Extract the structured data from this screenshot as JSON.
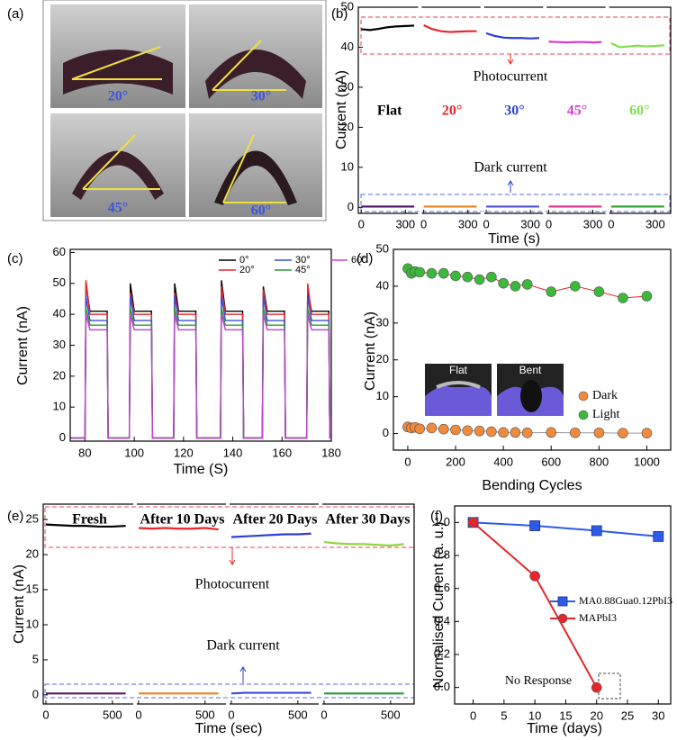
{
  "photo_panel": {
    "panel_label": "(a)",
    "angles": [
      "20°",
      "30°",
      "45°",
      "60°"
    ]
  },
  "chart_data": [
    {
      "type": "segmented-line",
      "panel_label": "(b)",
      "y_label": "Current (nA)",
      "x_label": "Time (s)",
      "annotations": [
        "Photocurrent",
        "Dark current"
      ],
      "ylim": [
        -1.5,
        50
      ],
      "yticks": [
        0,
        10,
        20,
        30,
        40,
        50
      ],
      "xlim": [
        -20,
        380
      ],
      "xticks": [
        0,
        300
      ],
      "series": [
        {
          "name": "Flat",
          "color": "#000000",
          "dark_color": "#4a1060",
          "x": [
            0,
            60,
            120,
            180,
            240,
            300,
            360
          ],
          "values": [
            44.5,
            44.3,
            44.6,
            45,
            45.2,
            45.3,
            45.4
          ],
          "dark_values": [
            0.2,
            0.2,
            0.2,
            0.2,
            0.2,
            0.2,
            0.2
          ]
        },
        {
          "name": "20°",
          "color": "#e8252a",
          "dark_color": "#f0801e",
          "x": [
            0,
            60,
            120,
            180,
            240,
            300,
            360
          ],
          "values": [
            45.5,
            44.5,
            44,
            43.8,
            43.9,
            44,
            44
          ],
          "dark_values": [
            0.2,
            0.2,
            0.2,
            0.2,
            0.2,
            0.2,
            0.2
          ]
        },
        {
          "name": "30°",
          "color": "#2d3fd6",
          "dark_color": "#5050e0",
          "x": [
            0,
            60,
            120,
            180,
            240,
            300,
            360
          ],
          "values": [
            43.5,
            42.8,
            42.4,
            42.3,
            42.3,
            42.2,
            42.3
          ],
          "dark_values": [
            0.2,
            0.2,
            0.2,
            0.2,
            0.2,
            0.2,
            0.2
          ]
        },
        {
          "name": "45°",
          "color": "#d63ad6",
          "dark_color": "#e0308a",
          "x": [
            0,
            60,
            120,
            180,
            240,
            300,
            360
          ],
          "values": [
            41.4,
            41.3,
            41.2,
            41.3,
            41.3,
            41.2,
            41.3
          ],
          "dark_values": [
            0.2,
            0.2,
            0.2,
            0.2,
            0.2,
            0.2,
            0.2
          ]
        },
        {
          "name": "60°",
          "color": "#7ee04a",
          "dark_color": "#2ea02e",
          "x": [
            0,
            60,
            120,
            180,
            240,
            300,
            360
          ],
          "values": [
            41,
            40,
            40.2,
            40.4,
            40.2,
            40.3,
            40.5
          ],
          "dark_values": [
            0.2,
            0.2,
            0.2,
            0.2,
            0.2,
            0.2,
            0.2
          ]
        }
      ]
    },
    {
      "type": "line",
      "panel_label": "(c)",
      "y_label": "Current (nA)",
      "x_label": "Time (S)",
      "xlim": [
        74,
        180
      ],
      "xticks": [
        80,
        100,
        120,
        140,
        160,
        180
      ],
      "ylim": [
        -1,
        61
      ],
      "yticks": [
        0,
        10,
        20,
        30,
        40,
        50,
        60
      ],
      "x": [
        75,
        80,
        80.4,
        82,
        89,
        89.4,
        98,
        98.4,
        100,
        107,
        107.4,
        116,
        116.4,
        118,
        125,
        125.4,
        135,
        135.4,
        137,
        144,
        144.4,
        152,
        152.4,
        154,
        161,
        161.4,
        170,
        170.4,
        172,
        179,
        179.4,
        180
      ],
      "series": [
        {
          "name": "0°",
          "color": "#000000",
          "values": [
            0,
            0,
            50,
            41,
            41,
            0,
            0,
            50,
            41,
            41,
            0,
            0,
            50,
            41,
            41,
            0,
            0,
            51,
            41,
            41,
            0,
            0,
            49,
            41,
            41,
            0,
            0,
            48,
            41,
            41,
            0,
            0
          ]
        },
        {
          "name": "20°",
          "color": "#e8252a",
          "values": [
            0,
            0,
            51,
            40,
            40,
            0,
            0,
            47,
            40,
            40,
            0,
            0,
            47,
            40,
            40,
            0,
            0,
            49,
            40,
            40,
            0,
            0,
            48,
            40,
            40,
            0,
            0,
            50,
            40,
            40,
            0,
            0
          ]
        },
        {
          "name": "30°",
          "color": "#3a4ed8",
          "values": [
            0,
            0,
            46,
            38,
            38,
            0,
            0,
            46,
            38,
            38,
            0,
            0,
            46,
            38,
            38,
            0,
            0,
            46,
            38,
            38,
            0,
            0,
            46,
            38,
            38,
            0,
            0,
            46,
            38,
            38,
            0,
            0
          ]
        },
        {
          "name": "45°",
          "color": "#2a9a3a",
          "values": [
            0,
            0,
            42,
            36.5,
            36.5,
            0,
            0,
            42,
            36.5,
            36.5,
            0,
            0,
            42,
            36.5,
            36.5,
            0,
            0,
            42,
            36.5,
            36.5,
            0,
            0,
            42,
            36.5,
            36.5,
            0,
            0,
            42,
            36.5,
            36.5,
            0,
            0
          ]
        },
        {
          "name": "60°",
          "color": "#c040d0",
          "values": [
            0,
            0,
            40,
            35,
            35,
            0,
            0,
            40,
            35,
            35,
            0,
            0,
            40,
            35,
            35,
            0,
            0,
            40,
            35,
            35,
            0,
            0,
            40,
            35,
            35,
            0,
            0,
            40,
            35,
            35,
            0,
            0
          ]
        }
      ]
    },
    {
      "type": "scatter-line",
      "panel_label": "(d)",
      "y_label": "Current (nA)",
      "x_label": "Bending Cycles",
      "inset_labels": [
        "Flat",
        "Bent"
      ],
      "xlim": [
        -60,
        1100
      ],
      "xticks": [
        0,
        200,
        400,
        600,
        800,
        1000
      ],
      "ylim": [
        -4.5,
        50
      ],
      "yticks": [
        0,
        10,
        20,
        30,
        40,
        50
      ],
      "x": [
        0,
        15,
        30,
        50,
        100,
        150,
        200,
        250,
        300,
        350,
        400,
        450,
        500,
        600,
        700,
        800,
        900,
        1000
      ],
      "series": [
        {
          "name": "Dark",
          "color": "#f08a3c",
          "line_color": "#999999",
          "values": [
            1.8,
            1.5,
            1.7,
            1.3,
            1.5,
            1.2,
            1,
            0.8,
            0.7,
            0.5,
            0.3,
            0.3,
            0.2,
            0.3,
            0.2,
            0.2,
            0.1,
            0.1
          ]
        },
        {
          "name": "Light",
          "color": "#3cb83c",
          "line_color": "#e8252a",
          "values": [
            44.8,
            43.5,
            44,
            43.8,
            43.5,
            43.5,
            42.8,
            42.5,
            41.8,
            42.5,
            40.8,
            40,
            40.5,
            38.5,
            40,
            38.5,
            36.8,
            37.3
          ]
        }
      ]
    },
    {
      "type": "segmented-line",
      "panel_label": "(e)",
      "y_label": "Current (nA)",
      "x_label": "Time (sec)",
      "annotations": [
        "Photocurrent",
        "Dark current"
      ],
      "ylim": [
        -1.3,
        27.2
      ],
      "yticks": [
        0,
        5,
        10,
        15,
        20,
        25
      ],
      "xlim": [
        -20,
        650
      ],
      "xticks": [
        0,
        500
      ],
      "series": [
        {
          "name": "Fresh",
          "color": "#000000",
          "dark_color": "#5a1a5a",
          "x": [
            0,
            100,
            200,
            300,
            400,
            500,
            600
          ],
          "values": [
            24.3,
            24.2,
            24.1,
            24.1,
            24,
            24,
            24.1
          ],
          "dark_values": [
            0.2,
            0.2,
            0.2,
            0.2,
            0.2,
            0.2,
            0.2
          ]
        },
        {
          "name": "After 10 Days",
          "color": "#e8252a",
          "dark_color": "#f0801e",
          "x": [
            0,
            100,
            200,
            300,
            400,
            500,
            600
          ],
          "values": [
            23.8,
            23.7,
            23.8,
            23.7,
            23.7,
            23.8,
            23.6
          ],
          "dark_values": [
            0.2,
            0.2,
            0.2,
            0.2,
            0.2,
            0.2,
            0.2
          ]
        },
        {
          "name": "After 20 Days",
          "color": "#2d3fd6",
          "dark_color": "#3a4ed8",
          "x": [
            0,
            100,
            200,
            300,
            400,
            500,
            600
          ],
          "values": [
            22.5,
            22.6,
            22.7,
            22.8,
            22.9,
            22.9,
            23
          ],
          "dark_values": [
            0.2,
            0.3,
            0.3,
            0.3,
            0.3,
            0.3,
            0.3
          ]
        },
        {
          "name": "After 30 Days",
          "color": "#8cd63c",
          "dark_color": "#2a9a3a",
          "x": [
            0,
            100,
            200,
            300,
            400,
            500,
            600
          ],
          "values": [
            21.8,
            21.6,
            21.5,
            21.5,
            21.4,
            21.3,
            21.5
          ],
          "dark_values": [
            0.2,
            0.2,
            0.2,
            0.2,
            0.2,
            0.2,
            0.2
          ]
        }
      ]
    },
    {
      "type": "line",
      "panel_label": "(f)",
      "y_label": "Normalised Current (a. u.)",
      "x_label": "Time (days)",
      "annotations": [
        "No Response"
      ],
      "xlim": [
        -3,
        32
      ],
      "xticks": [
        0,
        5,
        10,
        15,
        20,
        25,
        30
      ],
      "ylim": [
        -0.1,
        1.1
      ],
      "yticks": [
        {
          "value": 0,
          "label": "0.0"
        },
        0.2,
        0.4,
        0.6,
        0.8,
        {
          "value": 1,
          "label": "1.0"
        }
      ],
      "x": [
        0,
        10,
        20,
        30
      ],
      "series": [
        {
          "name": "MA0.88Gua0.12PbI3",
          "color": "#2d5be8",
          "marker": "square",
          "values": [
            1,
            0.98,
            0.95,
            0.915
          ]
        },
        {
          "name": "MAPbI3",
          "color": "#e8252a",
          "marker": "circle",
          "values": [
            1,
            0.675,
            0,
            null
          ]
        }
      ]
    }
  ]
}
